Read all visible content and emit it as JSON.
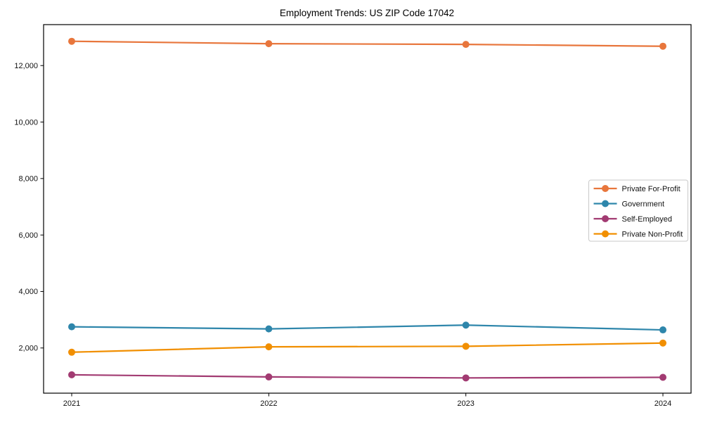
{
  "page": {
    "background": "#ffffff"
  },
  "chart_data": {
    "type": "line",
    "title": "Employment Trends: US ZIP Code 17042",
    "xlabel": "",
    "ylabel": "",
    "categories": [
      "2021",
      "2022",
      "2023",
      "2024"
    ],
    "series": [
      {
        "name": "Private For-Profit",
        "slug": "private-for-profit",
        "color": "#E8763C",
        "values": [
          12860,
          12775,
          12750,
          12685
        ]
      },
      {
        "name": "Government",
        "slug": "government",
        "color": "#2E86AB",
        "values": [
          2750,
          2675,
          2810,
          2640
        ]
      },
      {
        "name": "Self-Employed",
        "slug": "self-employed",
        "color": "#A23B72",
        "values": [
          1050,
          975,
          940,
          960
        ]
      },
      {
        "name": "Private Non-Profit",
        "slug": "private-non-profit",
        "color": "#F18F01",
        "values": [
          1850,
          2040,
          2060,
          2175
        ]
      }
    ],
    "ylim": [
      400,
      13450
    ],
    "yticks": [
      2000,
      4000,
      6000,
      8000,
      10000,
      12000
    ],
    "ytick_labels": [
      "2,000",
      "4,000",
      "6,000",
      "8,000",
      "10,000",
      "12,000"
    ],
    "grid": false,
    "marker": "circle",
    "legend": {
      "position": "right-middle",
      "border_color": "#c9c9c9",
      "background": "#ffffff"
    },
    "axis_color": "#000000"
  }
}
